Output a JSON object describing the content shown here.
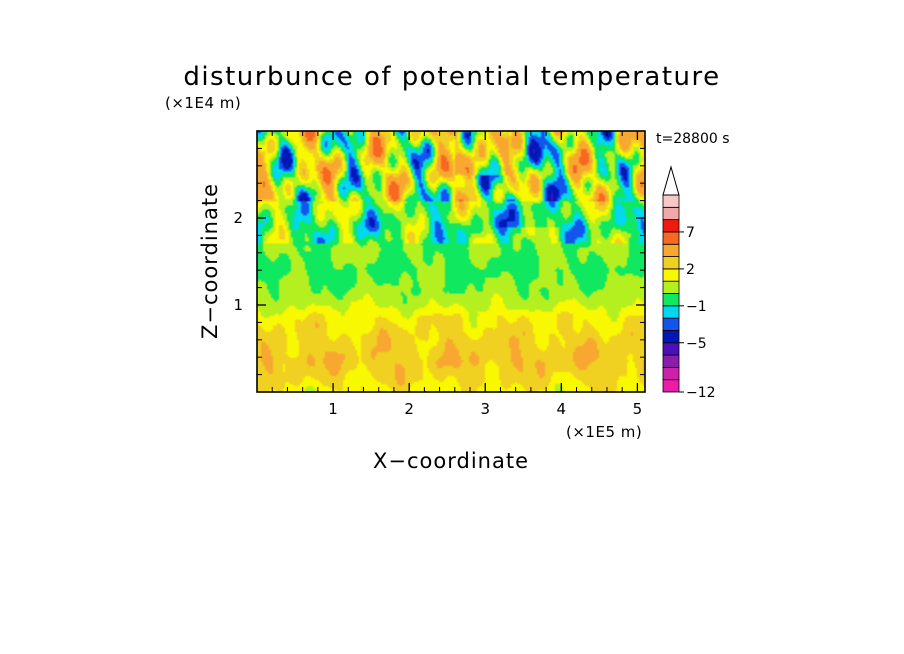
{
  "chart_data": {
    "type": "heatmap",
    "title": "disturbunce of potential temperature",
    "xlabel": "X−coordinate",
    "ylabel": "Z−coordinate",
    "x_unit": "(×1E5 m)",
    "y_unit": "(×1E4 m)",
    "time_label": "t=28800 s",
    "xlim": [
      0,
      5.1
    ],
    "ylim": [
      0,
      3.0
    ],
    "x_ticks": [
      1,
      2,
      3,
      4,
      5
    ],
    "x_tick_labels": [
      "1",
      "2",
      "3",
      "4",
      "5"
    ],
    "y_ticks": [
      1,
      2
    ],
    "y_tick_labels": [
      "1",
      "2"
    ],
    "grid": false,
    "colorbar": {
      "placement": "right",
      "levels": [
        -12,
        -10,
        -8,
        -6,
        -5,
        -3,
        -2,
        -1,
        0,
        1,
        2,
        3,
        5,
        7,
        9,
        11
      ],
      "tick_values": [
        7,
        2,
        -1,
        -5,
        -12
      ],
      "tick_labels": [
        "7",
        "2",
        "−1",
        "−5",
        "−12"
      ],
      "colors": [
        "#ee1aa8",
        "#cc22aa",
        "#8a1eaa",
        "#4b10b8",
        "#0018b8",
        "#1255ee",
        "#00d8f0",
        "#10e860",
        "#b4f020",
        "#f8f800",
        "#f0d020",
        "#f8a830",
        "#f86820",
        "#f01a10",
        "#f2a8a8",
        "#f6c8c8"
      ],
      "extend_top": true
    },
    "bands": [
      {
        "z_range": [
          0.0,
          0.2
        ],
        "dominant": "yellow",
        "value_approx": 1.5
      },
      {
        "z_range": [
          0.2,
          0.9
        ],
        "dominant": "yellow/orange",
        "value_approx": 2.5
      },
      {
        "z_range": [
          0.9,
          1.2
        ],
        "dominant": "yellow/green",
        "value_approx": 0.5
      },
      {
        "z_range": [
          1.2,
          1.7
        ],
        "dominant": "green",
        "value_approx": 0.0
      },
      {
        "z_range": [
          1.7,
          2.3
        ],
        "dominant": "yellow/cyan/blue",
        "value_approx": 0.0
      },
      {
        "z_range": [
          2.3,
          3.0
        ],
        "dominant": "mixed orange/blue",
        "value_approx": 1.0
      }
    ]
  }
}
